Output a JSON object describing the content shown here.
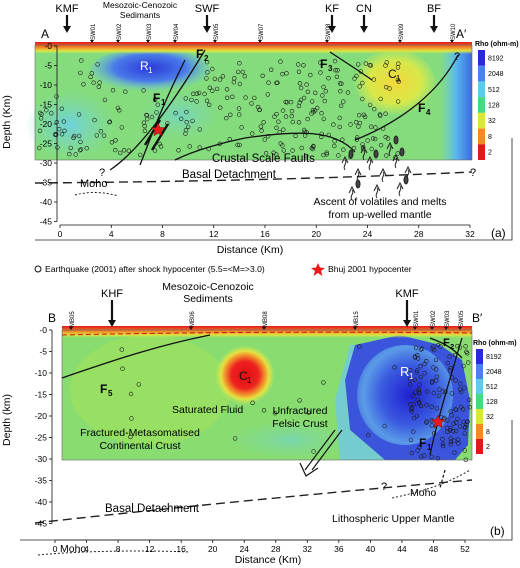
{
  "panel_a": {
    "section_start": "A",
    "section_end": "A′",
    "faults_top": [
      "KMF",
      "SWF",
      "KF",
      "CN",
      "BF"
    ],
    "stations": [
      "SW01",
      "SW02",
      "SW03",
      "SW04",
      "SW05",
      "SW07",
      "SW08",
      "SW09",
      "SW10"
    ],
    "sediments_label": "Mesozoic-Cenozoic\nSedimants",
    "blocks": [
      "R1",
      "C1"
    ],
    "fault_labels": [
      "F1",
      "F2",
      "F3",
      "F4"
    ],
    "crustal_faults": "Crustal Scale Faults",
    "basal": "Basal Detachment",
    "moho": "Moho",
    "ascent": "Ascent of volatiles and melts\nfrom up-welled mantle",
    "panel_label": "(a)",
    "ylabel": "Depth (Km)",
    "xlabel": "Distance (Km)",
    "xticks": [
      "0",
      "4",
      "8",
      "12",
      "16",
      "20",
      "24",
      "28",
      "32"
    ],
    "yticks": [
      "-0",
      "-5",
      "-10",
      "-15",
      "-20",
      "-25",
      "-30",
      "-35",
      "-40",
      "-45"
    ],
    "question_marks": [
      "?",
      "?",
      "?"
    ]
  },
  "legend": {
    "earthquake": "Earthquake (2001) after shock hypocenter (5.5=<M=>3.0)",
    "bhuj": "Bhuj 2001 hypocenter"
  },
  "panel_b": {
    "section_start": "B",
    "section_end": "B′",
    "faults_top": [
      "KHF",
      "KMF"
    ],
    "stations": [
      "MB05",
      "MB06",
      "MB08",
      "MB15",
      "SW01",
      "SW02",
      "SW03",
      "SW05"
    ],
    "sediments_label": "Mesozoic-Cenozoic\nSediments",
    "blocks": [
      "C1",
      "R1"
    ],
    "fault_labels": [
      "F5",
      "F2",
      "F1"
    ],
    "saturated": "Saturated Fluid",
    "fractured": "Fractured-Metasomatised\nContinental Crust",
    "unfractured": "Unfractured\nFelsic Crust",
    "basal": "Basal Detachment",
    "moho": "Moho",
    "mantle": "Lithospheric Upper Mantle",
    "panel_label": "(b)",
    "ylabel": "Depth (km)",
    "xlabel": "Distance (Km)",
    "xticks": [
      "0",
      "4",
      "8",
      "12",
      "16",
      "20",
      "24",
      "28",
      "32",
      "36",
      "40",
      "44",
      "48",
      "52"
    ],
    "yticks": [
      "-0",
      "-5",
      "-10",
      "-15",
      "-20",
      "-25",
      "-30",
      "-35",
      "-40",
      "-45"
    ],
    "question_marks": [
      "?"
    ]
  },
  "colorbar": {
    "title": "Rho (ohm-m)",
    "labels": [
      "8192",
      "2048",
      "512",
      "128",
      "32",
      "8",
      "2"
    ],
    "colors": [
      "#2a2ad8",
      "#4a82ec",
      "#62c8ee",
      "#48d880",
      "#d8e83a",
      "#ee8a2a",
      "#e01818"
    ]
  }
}
